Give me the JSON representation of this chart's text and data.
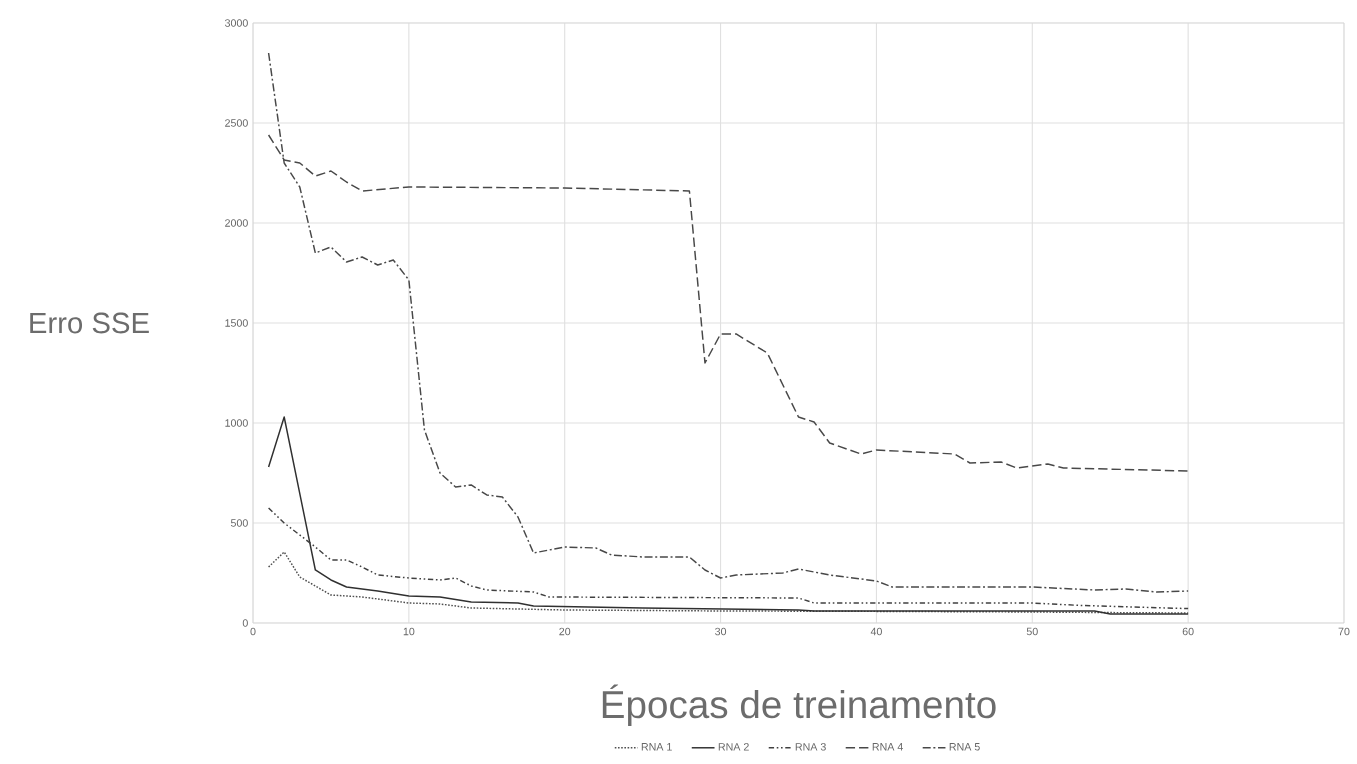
{
  "chart_data": {
    "type": "line",
    "xlabel": "Épocas de treinamento",
    "ylabel": "Erro SSE",
    "xlim": [
      0,
      70
    ],
    "ylim": [
      0,
      3000
    ],
    "xticks": [
      0,
      10,
      20,
      30,
      40,
      50,
      60,
      70
    ],
    "yticks": [
      0,
      500,
      1000,
      1500,
      2000,
      2500,
      3000
    ],
    "grid": true,
    "legend": "bottom",
    "marker": "none",
    "series": [
      {
        "name": "RNA 1",
        "color": "#505050",
        "line_style": "dotted",
        "x": [
          1,
          2,
          3,
          5,
          7,
          8,
          10,
          12,
          14,
          20,
          30,
          40,
          50,
          55,
          60
        ],
        "values": [
          280,
          355,
          230,
          140,
          130,
          120,
          100,
          95,
          75,
          65,
          60,
          58,
          55,
          52,
          50
        ]
      },
      {
        "name": "RNA 2",
        "color": "#303030",
        "line_style": "solid",
        "x": [
          1,
          2,
          4,
          5,
          6,
          8,
          10,
          12,
          14,
          17,
          18,
          25,
          35,
          36,
          54,
          55,
          60
        ],
        "values": [
          780,
          1030,
          265,
          215,
          180,
          160,
          135,
          130,
          105,
          100,
          85,
          75,
          65,
          60,
          60,
          45,
          45
        ]
      },
      {
        "name": "RNA 3",
        "color": "#404040",
        "line_style": "dashdotdot",
        "x": [
          1,
          2,
          4,
          5,
          6,
          7,
          8,
          10,
          12,
          13,
          14,
          15,
          18,
          19,
          35,
          36,
          50,
          53,
          60
        ],
        "values": [
          575,
          500,
          380,
          315,
          315,
          280,
          240,
          225,
          215,
          225,
          185,
          165,
          155,
          130,
          125,
          100,
          100,
          88,
          72
        ]
      },
      {
        "name": "RNA 4",
        "color": "#484848",
        "line_style": "dashed",
        "x": [
          1,
          2,
          3,
          4,
          5,
          6,
          7,
          10,
          20,
          28,
          29,
          30,
          31,
          33,
          35,
          36,
          37,
          39,
          40,
          45,
          46,
          48,
          49,
          51,
          52,
          60
        ],
        "values": [
          2440,
          2315,
          2300,
          2235,
          2260,
          2205,
          2160,
          2180,
          2175,
          2160,
          1300,
          1445,
          1445,
          1350,
          1030,
          1005,
          900,
          845,
          865,
          845,
          800,
          805,
          775,
          795,
          775,
          760
        ]
      },
      {
        "name": "RNA 5",
        "color": "#484848",
        "line_style": "dashdot",
        "x": [
          1,
          2,
          3,
          4,
          5,
          6,
          7,
          8,
          9,
          10,
          11,
          12,
          13,
          14,
          15,
          16,
          17,
          18,
          19,
          20,
          22,
          23,
          25,
          28,
          29,
          30,
          31,
          34,
          35,
          37,
          40,
          41,
          46,
          50,
          54,
          56,
          58,
          60
        ],
        "values": [
          2850,
          2300,
          2180,
          1850,
          1880,
          1805,
          1830,
          1790,
          1815,
          1715,
          965,
          750,
          680,
          690,
          640,
          630,
          530,
          350,
          365,
          380,
          375,
          340,
          330,
          330,
          265,
          225,
          240,
          250,
          270,
          240,
          210,
          180,
          180,
          180,
          165,
          170,
          155,
          160
        ]
      }
    ]
  }
}
